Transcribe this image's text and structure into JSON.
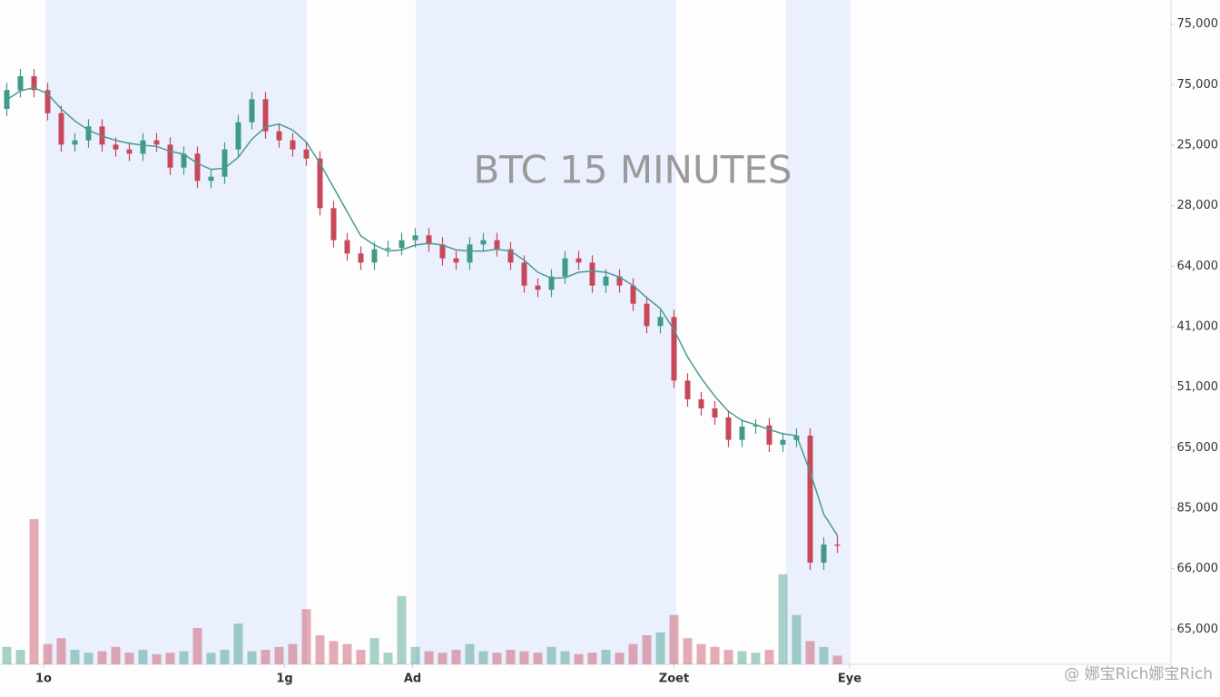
{
  "chart_data": {
    "type": "candlestick",
    "title": "BTC 15 MINUTES",
    "xlim": [
      -0.5,
      85.5
    ],
    "xticks": [
      {
        "value": 2.7,
        "label": "1o"
      },
      {
        "value": 20.4,
        "label": "1g"
      },
      {
        "value": 29.8,
        "label": "Ad"
      },
      {
        "value": 49,
        "label": "Zoet"
      },
      {
        "value": 61.9,
        "label": "Eye"
      }
    ],
    "ylim": [
      0,
      11.4
    ],
    "yticks": [
      {
        "value": 11,
        "label": "75,000"
      },
      {
        "value": 10,
        "label": "75,000"
      },
      {
        "value": 9,
        "label": "25,000"
      },
      {
        "value": 8,
        "label": "28,000"
      },
      {
        "value": 7,
        "label": "64,000"
      },
      {
        "value": 6,
        "label": "41,000"
      },
      {
        "value": 5,
        "label": "51,000"
      },
      {
        "value": 4,
        "label": "65,000"
      },
      {
        "value": 3,
        "label": "85,000"
      },
      {
        "value": 2,
        "label": "66,000"
      },
      {
        "value": 1,
        "label": "65,000"
      }
    ],
    "up_color": "#3f9a88",
    "down_color": "#c8485a",
    "open": [
      9.6,
      9.91,
      10.14,
      9.91,
      9.53,
      9.01,
      9.08,
      9.31,
      9.01,
      8.93,
      8.86,
      9.08,
      9.01,
      8.63,
      8.86,
      8.41,
      8.48,
      8.93,
      9.38,
      9.76,
      9.23,
      9.08,
      8.93,
      8.78,
      7.96,
      7.43,
      7.21,
      7.06,
      7.28,
      7.3,
      7.43,
      7.51,
      7.36,
      7.13,
      7.06,
      7.36,
      7.43,
      7.28,
      7.06,
      6.68,
      6.61,
      6.83,
      7.13,
      7.06,
      6.68,
      6.83,
      6.68,
      6.38,
      6.01,
      6.16,
      5.11,
      4.8,
      4.65,
      4.5,
      4.13,
      4.35,
      4.37,
      4.05,
      4.13,
      4.2,
      2.1,
      2.4
    ],
    "high": [
      10.03,
      10.26,
      10.26,
      10.03,
      9.65,
      9.2,
      9.43,
      9.43,
      9.13,
      9.05,
      9.2,
      9.2,
      9.13,
      8.98,
      8.98,
      8.6,
      9.05,
      9.5,
      9.88,
      9.88,
      9.35,
      9.2,
      9.05,
      8.9,
      8.08,
      7.55,
      7.33,
      7.4,
      7.42,
      7.55,
      7.63,
      7.63,
      7.48,
      7.25,
      7.48,
      7.55,
      7.55,
      7.4,
      7.18,
      6.8,
      6.95,
      7.25,
      7.25,
      7.18,
      6.95,
      6.95,
      6.8,
      6.5,
      6.28,
      6.28,
      5.23,
      4.92,
      4.77,
      4.62,
      4.47,
      4.47,
      4.49,
      4.25,
      4.32,
      4.32,
      2.52,
      2.55
    ],
    "low": [
      9.48,
      9.79,
      9.79,
      9.41,
      8.89,
      8.89,
      8.96,
      8.89,
      8.81,
      8.74,
      8.74,
      8.89,
      8.51,
      8.51,
      8.29,
      8.29,
      8.36,
      8.81,
      9.26,
      9.11,
      8.96,
      8.81,
      8.66,
      7.84,
      7.31,
      7.09,
      6.94,
      6.94,
      7.16,
      7.18,
      7.31,
      7.24,
      7.01,
      6.94,
      6.94,
      7.24,
      7.16,
      6.94,
      6.56,
      6.49,
      6.49,
      6.71,
      6.94,
      6.56,
      6.56,
      6.56,
      6.26,
      5.89,
      5.89,
      4.99,
      4.68,
      4.53,
      4.38,
      4.01,
      4.01,
      4.23,
      3.93,
      3.93,
      4.01,
      1.98,
      1.98,
      2.26
    ],
    "close": [
      9.91,
      10.14,
      9.91,
      9.53,
      9.01,
      9.08,
      9.31,
      9.01,
      8.93,
      8.86,
      9.08,
      9.01,
      8.63,
      8.86,
      8.41,
      8.48,
      8.93,
      9.38,
      9.76,
      9.23,
      9.08,
      8.93,
      8.78,
      7.96,
      7.43,
      7.21,
      7.06,
      7.28,
      7.3,
      7.43,
      7.51,
      7.36,
      7.13,
      7.06,
      7.36,
      7.43,
      7.28,
      7.06,
      6.68,
      6.61,
      6.83,
      7.13,
      7.06,
      6.68,
      6.83,
      6.68,
      6.38,
      6.01,
      6.16,
      5.11,
      4.8,
      4.65,
      4.5,
      4.13,
      4.35,
      4.37,
      4.05,
      4.13,
      4.2,
      2.1,
      2.4,
      2.38
    ],
    "ma": {
      "color": "#4a9a92",
      "values": [
        9.75,
        9.9,
        9.95,
        9.85,
        9.6,
        9.4,
        9.25,
        9.15,
        9.08,
        9.03,
        9.0,
        8.98,
        8.9,
        8.85,
        8.7,
        8.6,
        8.62,
        8.8,
        9.1,
        9.3,
        9.35,
        9.25,
        9.05,
        8.7,
        8.3,
        7.9,
        7.5,
        7.35,
        7.25,
        7.27,
        7.35,
        7.38,
        7.35,
        7.27,
        7.25,
        7.25,
        7.28,
        7.25,
        7.1,
        6.9,
        6.8,
        6.81,
        6.9,
        6.92,
        6.9,
        6.82,
        6.68,
        6.48,
        6.3,
        5.95,
        5.5,
        5.15,
        4.85,
        4.6,
        4.45,
        4.38,
        4.3,
        4.23,
        4.2,
        3.6,
        2.9,
        2.55
      ]
    },
    "volume": {
      "ylim": [
        0,
        100
      ],
      "values": [
        12,
        10,
        100,
        14,
        18,
        10,
        8,
        9,
        12,
        8,
        10,
        7,
        8,
        9,
        25,
        8,
        10,
        28,
        9,
        10,
        12,
        14,
        38,
        20,
        16,
        14,
        10,
        18,
        8,
        47,
        12,
        9,
        8,
        10,
        14,
        9,
        8,
        10,
        9,
        8,
        12,
        9,
        7,
        8,
        10,
        8,
        14,
        20,
        22,
        34,
        18,
        14,
        12,
        10,
        9,
        8,
        10,
        62,
        34,
        16,
        12,
        6
      ]
    }
  },
  "watermark": "@ 娜宝Rich娜宝Rich"
}
